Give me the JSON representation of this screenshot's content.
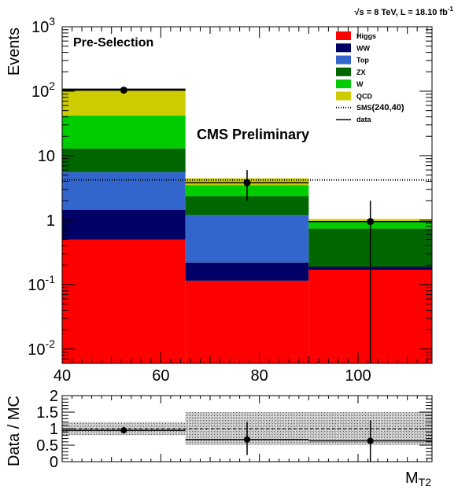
{
  "header": {
    "energy": "√s = 8 TeV, L = 18.10 fb",
    "lumi_exponent": "-1"
  },
  "annotations": {
    "selection": "Pre-Selection",
    "cms": "CMS Preliminary"
  },
  "chart_data": [
    {
      "type": "bar",
      "stacked": true,
      "ylabel": "Events",
      "xlabel": "M",
      "xlabel_sub": "T2",
      "log_y": true,
      "xlim": [
        40,
        115
      ],
      "ylim": [
        0.006,
        1000
      ],
      "bin_edges": [
        40,
        65,
        90,
        115
      ],
      "x_ticks": [
        {
          "value": 40,
          "label": "40"
        },
        {
          "value": 60,
          "label": "60"
        },
        {
          "value": 80,
          "label": "80"
        },
        {
          "value": 100,
          "label": "100"
        }
      ],
      "y_ticks": [
        {
          "value": 1000,
          "base": "10",
          "exp": "3"
        },
        {
          "value": 100,
          "base": "10",
          "exp": "2"
        },
        {
          "value": 10,
          "base": "10",
          "exp": ""
        },
        {
          "value": 1,
          "base": "1",
          "exp": ""
        },
        {
          "value": 0.1,
          "base": "10",
          "exp": "-1"
        },
        {
          "value": 0.01,
          "base": "10",
          "exp": "-2"
        }
      ],
      "series": [
        {
          "name": "Higgs",
          "color": "#ff0000",
          "values": [
            0.5,
            0.115,
            0.17
          ]
        },
        {
          "name": "WW",
          "color": "#000066",
          "values": [
            0.95,
            0.105,
            0.02
          ]
        },
        {
          "name": "Top",
          "color": "#3366cc",
          "values": [
            4.1,
            0.98,
            0.0
          ]
        },
        {
          "name": "ZX",
          "color": "#006600",
          "values": [
            7.4,
            1.15,
            0.55
          ]
        },
        {
          "name": "W",
          "color": "#00cc00",
          "values": [
            29.0,
            1.15,
            0.23
          ]
        },
        {
          "name": "QCD",
          "color": "#cccc00",
          "values": [
            60.0,
            0.95,
            0.07
          ]
        }
      ],
      "sms": {
        "name": "SMS",
        "label_suffix": "(240,40)",
        "value": 4.2
      },
      "data": {
        "name": "data",
        "points": [
          {
            "x": 52.5,
            "y": 104,
            "y_low": 104,
            "y_high": 104
          },
          {
            "x": 77.5,
            "y": 3.8,
            "y_low": 2.0,
            "y_high": 6.0
          },
          {
            "x": 102.5,
            "y": 0.95,
            "y_low": 0.006,
            "y_high": 2.0
          }
        ]
      }
    },
    {
      "type": "scatter",
      "ylabel": "Data / MC",
      "xlim": [
        40,
        115
      ],
      "ylim": [
        0,
        2
      ],
      "y_ticks": [
        {
          "value": 0,
          "label": "0"
        },
        {
          "value": 0.5,
          "label": "0.5"
        },
        {
          "value": 1,
          "label": "1"
        },
        {
          "value": 1.5,
          "label": "1.5"
        },
        {
          "value": 2,
          "label": "2"
        }
      ],
      "uncertainty_band": [
        {
          "x0": 40,
          "x1": 65,
          "low": 0.8,
          "high": 1.2
        },
        {
          "x0": 65,
          "x1": 90,
          "low": 0.5,
          "high": 1.5
        },
        {
          "x0": 90,
          "x1": 115,
          "low": 0.5,
          "high": 1.5
        }
      ],
      "points": [
        {
          "x": 52.5,
          "y": 0.95,
          "y_low": 0.85,
          "y_high": 1.05
        },
        {
          "x": 77.5,
          "y": 0.67,
          "y_low": 0.2,
          "y_high": 1.2
        },
        {
          "x": 102.5,
          "y": 0.63,
          "y_low": 0.0,
          "y_high": 1.25
        }
      ]
    }
  ]
}
